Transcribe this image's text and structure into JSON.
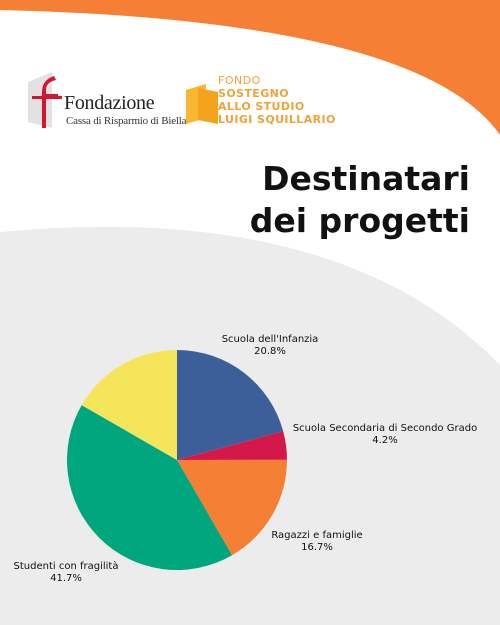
{
  "logos": {
    "fondazione_name": "Fondazione",
    "fondazione_sub": "Cassa di Risparmio di Biella",
    "fondo_line1": "FONDO",
    "fondo_line2": "SOSTEGNO",
    "fondo_line3": "ALLO STUDIO",
    "fondo_line4": "LUIGI SQUILLARIO"
  },
  "title_line1": "Destinatari",
  "title_line2": "dei progetti",
  "colors": {
    "orange": "#f47f35",
    "grey_bg": "#ececec",
    "red": "#d4162f",
    "yellow_logo": "#f7b731"
  },
  "chart_data": {
    "type": "pie",
    "title": "",
    "slices": [
      {
        "label": "Scuola dell'Infanzia",
        "value": 20.8,
        "value_label": "20.8%",
        "color": "#3d5f99"
      },
      {
        "label": "Scuola Secondaria di Secondo Grado",
        "value": 4.2,
        "value_label": "4.2%",
        "color": "#d4184a"
      },
      {
        "label": "Ragazzi e famiglie",
        "value": 16.7,
        "value_label": "16.7%",
        "color": "#f47f35"
      },
      {
        "label": "Studenti con fragilità",
        "value": 41.7,
        "value_label": "41.7%",
        "color": "#00a67e"
      },
      {
        "label": "",
        "value": 16.7,
        "value_label": "",
        "color": "#f5e55a"
      }
    ]
  }
}
